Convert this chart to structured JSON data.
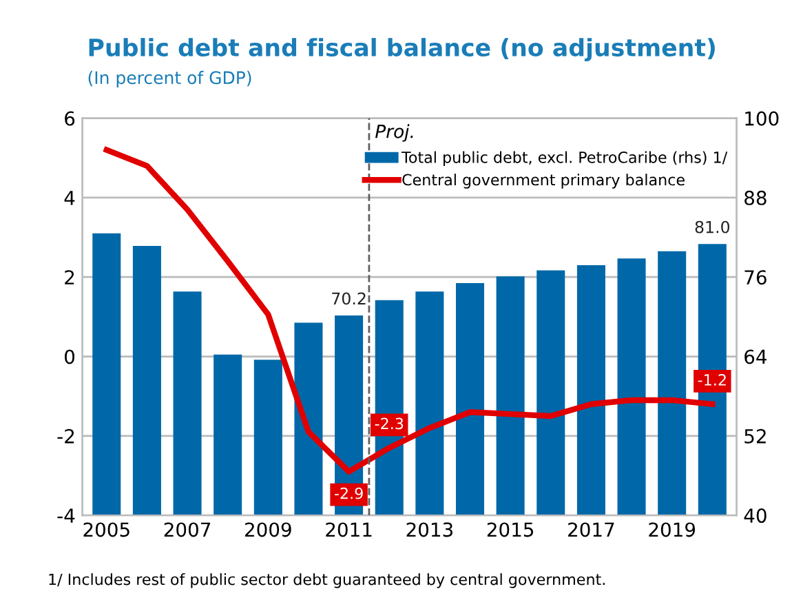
{
  "chart_data": {
    "type": "bar",
    "title": "Public debt and fiscal balance (no adjustment)",
    "subtitle": "(In percent of GDP)",
    "x": [
      2005,
      2006,
      2007,
      2008,
      2009,
      2010,
      2011,
      2012,
      2013,
      2014,
      2015,
      2016,
      2017,
      2018,
      2019,
      2020
    ],
    "series": [
      {
        "name": "Total public debt, excl. PetroCaribe (rhs) 1/",
        "axis": "y2",
        "color": "#0068a8",
        "values": [
          82.6,
          80.7,
          73.8,
          64.3,
          63.5,
          69.1,
          70.2,
          72.5,
          73.8,
          75.1,
          76.1,
          77.0,
          77.8,
          78.8,
          79.9,
          81.0
        ],
        "value_labels": [
          null,
          null,
          null,
          null,
          null,
          null,
          "70.2",
          null,
          null,
          null,
          null,
          null,
          null,
          null,
          null,
          "81.0"
        ]
      },
      {
        "name": "Central government primary balance",
        "type": "line",
        "color": "#e00000",
        "values": [
          5.2,
          4.8,
          3.7,
          2.4,
          1.06,
          -1.9,
          -2.9,
          -2.3,
          -1.8,
          -1.4,
          -1.45,
          -1.5,
          -1.2,
          -1.1,
          -1.1,
          -1.2
        ],
        "value_labels": [
          null,
          null,
          null,
          null,
          null,
          null,
          "-2.9",
          "-2.3",
          null,
          null,
          null,
          null,
          null,
          null,
          null,
          "-1.2"
        ]
      }
    ],
    "xlim": [
      2004.4,
      2020.6
    ],
    "xticks": [
      2005,
      2007,
      2009,
      2011,
      2013,
      2015,
      2017,
      2019
    ],
    "ylim": [
      -4,
      6
    ],
    "yticks": [
      -4,
      -2,
      0,
      2,
      4,
      6
    ],
    "y2lim": [
      40,
      100
    ],
    "y2ticks": [
      40,
      52,
      64,
      76,
      88,
      100
    ],
    "ref_lines": [
      {
        "axis": "x",
        "value": 2011.5,
        "label": "Proj.",
        "color": "#606060",
        "line_style": "dashed"
      }
    ],
    "annotations": [
      "1/ Includes rest of public sector debt guaranteed by central government."
    ],
    "grid": "y",
    "legend": "top right",
    "marker": "none",
    "line_style": "solid"
  }
}
